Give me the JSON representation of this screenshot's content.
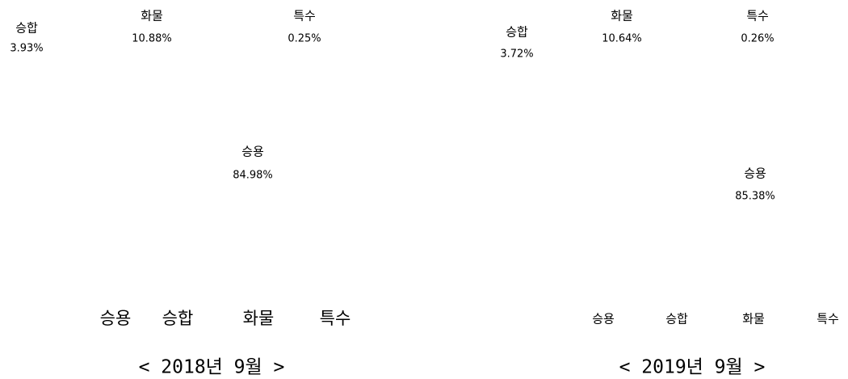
{
  "chart_data": [
    {
      "type": "pie",
      "title": "< 2018년 9월 >",
      "categories": [
        "승용",
        "승합",
        "화물",
        "특수"
      ],
      "values": [
        84.98,
        3.93,
        10.88,
        0.25
      ],
      "value_labels": [
        "84.98%",
        "3.93%",
        "10.88%",
        "0.25%"
      ],
      "colors": [
        "#ffffff",
        "#ffffff",
        "#ffffff",
        "#ffffff"
      ],
      "legend": "bottom"
    },
    {
      "type": "pie",
      "title": "< 2019년 9월 >",
      "categories": [
        "승용",
        "승합",
        "화물",
        "특수"
      ],
      "values": [
        85.38,
        3.72,
        10.64,
        0.26
      ],
      "value_labels": [
        "85.38%",
        "3.72%",
        "10.64%",
        "0.26%"
      ],
      "colors": [
        "#ffffff",
        "#ffffff",
        "#ffffff",
        "#ffffff"
      ],
      "legend": "bottom"
    }
  ]
}
